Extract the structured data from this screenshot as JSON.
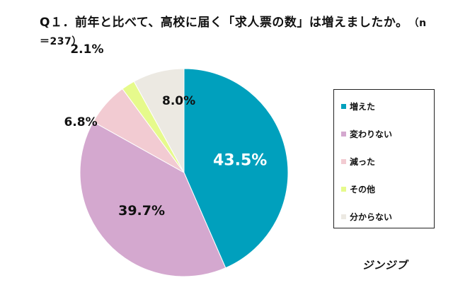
{
  "title": {
    "text": "Q１．前年と比べて、高校に届く「求人票の数」は増えましたか。",
    "note": "（n＝237）"
  },
  "credit": "ジンジブ",
  "chart_data": {
    "type": "pie",
    "start_angle": "12 o'clock",
    "direction": "clockwise",
    "legend_position": "right",
    "unit": "%",
    "slices": [
      {
        "label": "増えた",
        "value": 43.5,
        "display": "43.5%",
        "color": "#00a0bd",
        "label_color": "#ffffff"
      },
      {
        "label": "変わりない",
        "value": 39.7,
        "display": "39.7%",
        "color": "#d4a8cf",
        "label_color": "#111111"
      },
      {
        "label": "減った",
        "value": 6.8,
        "display": "6.8%",
        "color": "#f2cbd2",
        "label_color": "#111111"
      },
      {
        "label": "その他",
        "value": 2.1,
        "display": "2.1%",
        "color": "#e6fa8c",
        "label_color": "#111111"
      },
      {
        "label": "分からない",
        "value": 8.0,
        "display": "8.0%",
        "color": "#ece9e2",
        "label_color": "#111111"
      }
    ]
  }
}
